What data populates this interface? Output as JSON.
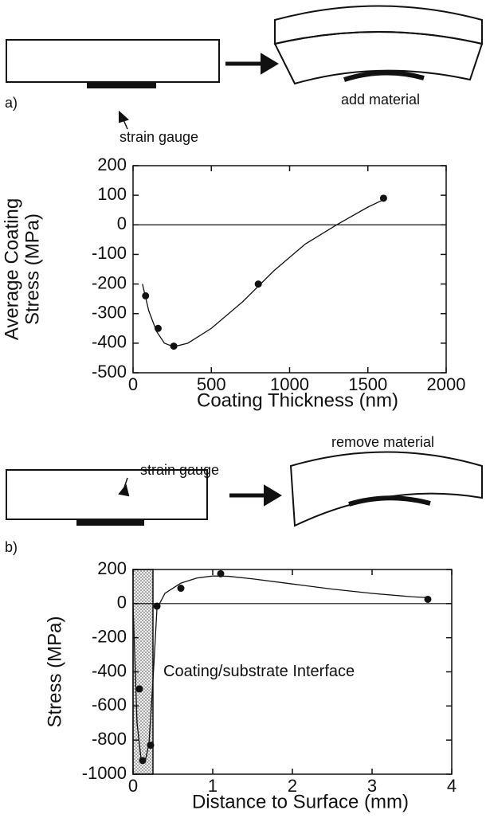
{
  "figure": {
    "a_label": "a)",
    "a_gauge": "strain gauge",
    "a_action": "add material",
    "b_label": "b)",
    "b_gauge": "strain gauge",
    "b_action": "remove material"
  },
  "chart_data": [
    {
      "type": "scatter",
      "xlabel": "Coating Thickness (nm)",
      "ylabel": [
        "Average Coating",
        "Stress (MPa)"
      ],
      "x": [
        80,
        160,
        260,
        800,
        1600
      ],
      "values": [
        -240,
        -350,
        -410,
        -200,
        90
      ],
      "fit": {
        "x": [
          60,
          100,
          150,
          200,
          260,
          350,
          500,
          700,
          900,
          1100,
          1300,
          1500,
          1600
        ],
        "values": [
          -200,
          -290,
          -360,
          -400,
          -412,
          -400,
          -350,
          -260,
          -155,
          -65,
          0,
          60,
          85
        ]
      },
      "reference_line": 0,
      "xlim": [
        0,
        2000
      ],
      "xticks": [
        0,
        500,
        1000,
        1500,
        2000
      ],
      "ylim": [
        -500,
        200
      ],
      "yticks": [
        -500,
        -400,
        -300,
        -200,
        -100,
        0,
        100,
        200
      ]
    },
    {
      "type": "scatter",
      "xlabel": "Distance to Surface (mm)",
      "ylabel": [
        "Stress (MPa)"
      ],
      "x": [
        0.08,
        0.12,
        0.22,
        0.3,
        0.6,
        1.1,
        3.7
      ],
      "values": [
        -500,
        -920,
        -830,
        -15,
        90,
        175,
        25
      ],
      "fit": {
        "x": [
          0,
          0.05,
          0.1,
          0.15,
          0.2,
          0.25,
          0.3,
          0.4,
          0.6,
          0.8,
          1.0,
          1.2,
          1.5,
          2,
          2.5,
          3,
          3.5,
          3.7
        ],
        "values": [
          -10,
          -700,
          -910,
          -930,
          -820,
          -450,
          -30,
          60,
          120,
          150,
          162,
          160,
          145,
          115,
          85,
          60,
          40,
          35
        ]
      },
      "reference_line": 0,
      "shaded_region": [
        0,
        0.25
      ],
      "annotation": "Coating/substrate Interface",
      "xlim": [
        0,
        4
      ],
      "xticks": [
        0,
        1,
        2,
        3,
        4
      ],
      "ylim": [
        -1000,
        200
      ],
      "yticks": [
        -1000,
        -800,
        -600,
        -400,
        -200,
        0,
        200
      ]
    }
  ]
}
